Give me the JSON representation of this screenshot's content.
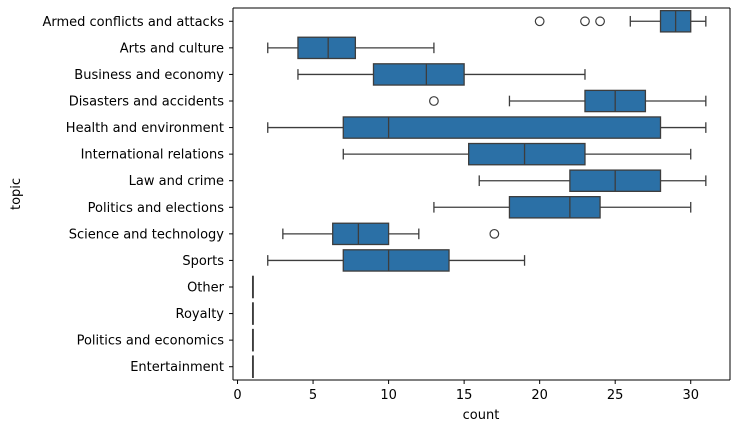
{
  "chart_data": {
    "type": "boxplot",
    "orientation": "horizontal",
    "title": "",
    "xlabel": "count",
    "ylabel": "topic",
    "xlim": [
      -0.3,
      32.6
    ],
    "xticks": [
      0,
      5,
      10,
      15,
      20,
      25,
      30
    ],
    "grid": false,
    "legend": "none",
    "colors": {
      "box_fill": "#2b70a6",
      "line": "#3d3d3d",
      "axis": "#000000"
    },
    "categories": [
      "Armed conflicts and attacks",
      "Arts and culture",
      "Business and economy",
      "Disasters and accidents",
      "Health and environment",
      "International relations",
      "Law and crime",
      "Politics and elections",
      "Science and technology",
      "Sports",
      "Other",
      "Royalty",
      "Politics and economics",
      "Entertainment"
    ],
    "boxes": [
      {
        "min": 26,
        "q1": 28,
        "median": 29,
        "q3": 30,
        "max": 31,
        "outliers": [
          20,
          23,
          24
        ]
      },
      {
        "min": 2,
        "q1": 4,
        "median": 6,
        "q3": 7.8,
        "max": 13,
        "outliers": []
      },
      {
        "min": 4,
        "q1": 9,
        "median": 12.5,
        "q3": 15,
        "max": 23,
        "outliers": []
      },
      {
        "min": 18,
        "q1": 23,
        "median": 25,
        "q3": 27,
        "max": 31,
        "outliers": [
          13
        ]
      },
      {
        "min": 2,
        "q1": 7,
        "median": 10,
        "q3": 28,
        "max": 31,
        "outliers": []
      },
      {
        "min": 7,
        "q1": 15.3,
        "median": 19,
        "q3": 23,
        "max": 30,
        "outliers": []
      },
      {
        "min": 16,
        "q1": 22,
        "median": 25,
        "q3": 28,
        "max": 31,
        "outliers": []
      },
      {
        "min": 13,
        "q1": 18,
        "median": 22,
        "q3": 24,
        "max": 30,
        "outliers": []
      },
      {
        "min": 3,
        "q1": 6.3,
        "median": 8,
        "q3": 10,
        "max": 12,
        "outliers": [
          17
        ]
      },
      {
        "min": 2,
        "q1": 7,
        "median": 10,
        "q3": 14,
        "max": 19,
        "outliers": []
      },
      {
        "min": 1,
        "q1": 1,
        "median": 1,
        "q3": 1,
        "max": 1,
        "outliers": []
      },
      {
        "min": 1,
        "q1": 1,
        "median": 1,
        "q3": 1,
        "max": 1,
        "outliers": []
      },
      {
        "min": 1,
        "q1": 1,
        "median": 1,
        "q3": 1,
        "max": 1,
        "outliers": []
      },
      {
        "min": 1,
        "q1": 1,
        "median": 1,
        "q3": 1,
        "max": 1,
        "outliers": []
      }
    ]
  }
}
